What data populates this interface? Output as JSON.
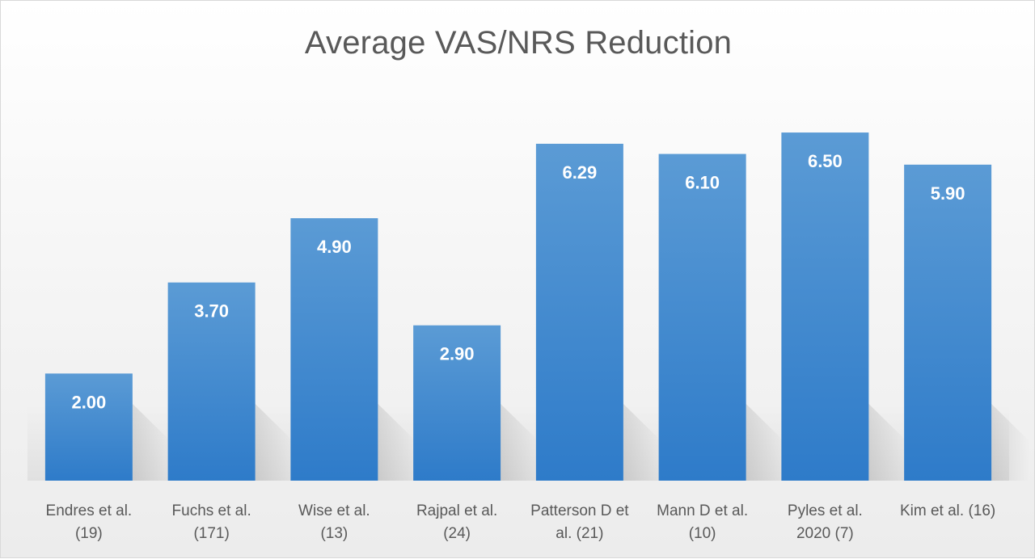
{
  "chart_data": {
    "type": "bar",
    "title": "Average VAS/NRS Reduction",
    "xlabel": "",
    "ylabel": "",
    "ylim": [
      0,
      7
    ],
    "grid": false,
    "legend": "none",
    "categories": [
      [
        "Endres et al.",
        "(19)"
      ],
      [
        "Fuchs et al.",
        "(171)"
      ],
      [
        "Wise et al.",
        "(13)"
      ],
      [
        "Rajpal et al.",
        "(24)"
      ],
      [
        "Patterson D et",
        "al. (21)"
      ],
      [
        "Mann D et al.",
        "(10)"
      ],
      [
        "Pyles et al.",
        "2020 (7)"
      ],
      [
        "Kim et al. (16)"
      ]
    ],
    "values": [
      2.0,
      3.7,
      4.9,
      2.9,
      6.29,
      6.1,
      6.5,
      5.9
    ],
    "data_labels": [
      "2.00",
      "3.70",
      "4.90",
      "2.90",
      "6.29",
      "6.10",
      "6.50",
      "5.90"
    ],
    "colors": {
      "bar_top": "#5b9bd5",
      "bar_bottom": "#2e7bc9",
      "title": "#595959",
      "axis_text": "#595959",
      "data_label": "#ffffff"
    }
  }
}
